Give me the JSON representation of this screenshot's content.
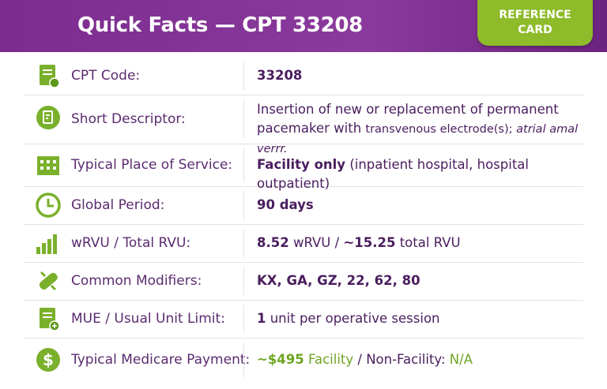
{
  "header": {
    "title": "Quick Facts — CPT 33208",
    "badge": [
      "REFERENCE",
      "CARD"
    ]
  },
  "rows": [
    {
      "label": "CPT Code:",
      "value": [
        "33208"
      ]
    },
    {
      "label": "Short Descriptor:",
      "value": [
        "Insertion of new or replacement of permanent",
        "pacemaker with ",
        "transvenous electrode(s); ",
        "atrial amal verrr."
      ]
    },
    {
      "label": "Typical Place of Service:",
      "value": [
        "Facility only",
        " (inpatient hospital, hospital outpatient)"
      ]
    },
    {
      "label": "Global Period:",
      "value": [
        "90 days"
      ]
    },
    {
      "label": "wRVU / Total RVU:",
      "value": [
        "8.52",
        " wRVU / ",
        "~15.25",
        " total RVU"
      ]
    },
    {
      "label": "Common Modifiers:",
      "value": [
        "KX, GA, GZ, 22, 62, 80"
      ]
    },
    {
      "label": "MUE / Usual Unit Limit:",
      "value": [
        "1",
        " unit per operative session"
      ]
    },
    {
      "label": "Typical Medicare Payment:",
      "value": [
        "~$495",
        " Facility",
        " / Non-Facility: ",
        "N/A"
      ]
    }
  ]
}
